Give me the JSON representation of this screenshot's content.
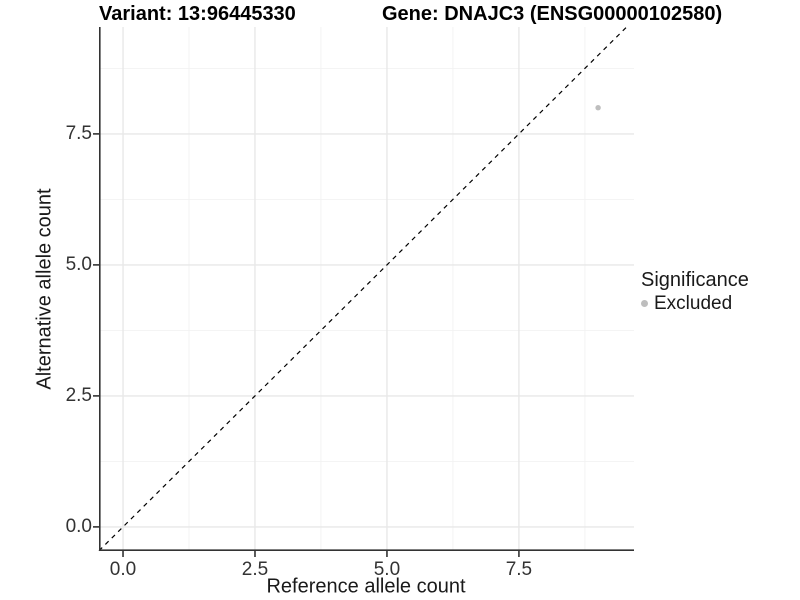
{
  "chart_data": {
    "type": "scatter",
    "title_left": "Variant: 13:96445330",
    "title_right": "Gene: DNAJC3 (ENSG00000102580)",
    "xlabel": "Reference allele count",
    "ylabel": "Alternative allele count",
    "xlim": [
      -0.455,
      9.68
    ],
    "ylim": [
      -0.46,
      9.54
    ],
    "x_ticks": [
      0.0,
      2.5,
      5.0,
      7.5
    ],
    "x_tick_labels": [
      "0.0",
      "2.5",
      "5.0",
      "7.5"
    ],
    "y_ticks": [
      0.0,
      2.5,
      5.0,
      7.5
    ],
    "y_tick_labels": [
      "0.0",
      "2.5",
      "5.0",
      "7.5"
    ],
    "x_minor_ticks": [
      1.25,
      3.75,
      6.25,
      8.75
    ],
    "y_minor_ticks": [
      1.25,
      3.75,
      6.25,
      8.75
    ],
    "grid": true,
    "grid_major_color": "#e8e8e8",
    "grid_minor_color": "#f2f2f2",
    "axis_line_color": "#333333",
    "reference_line": {
      "type": "identity",
      "slope": 1,
      "intercept": 0,
      "style": "dashed",
      "color": "#000000"
    },
    "series": [
      {
        "name": "Excluded",
        "color": "#bebebe",
        "points": [
          {
            "x": 9,
            "y": 8
          }
        ]
      }
    ],
    "legend": {
      "title": "Significance",
      "position": "right"
    }
  }
}
